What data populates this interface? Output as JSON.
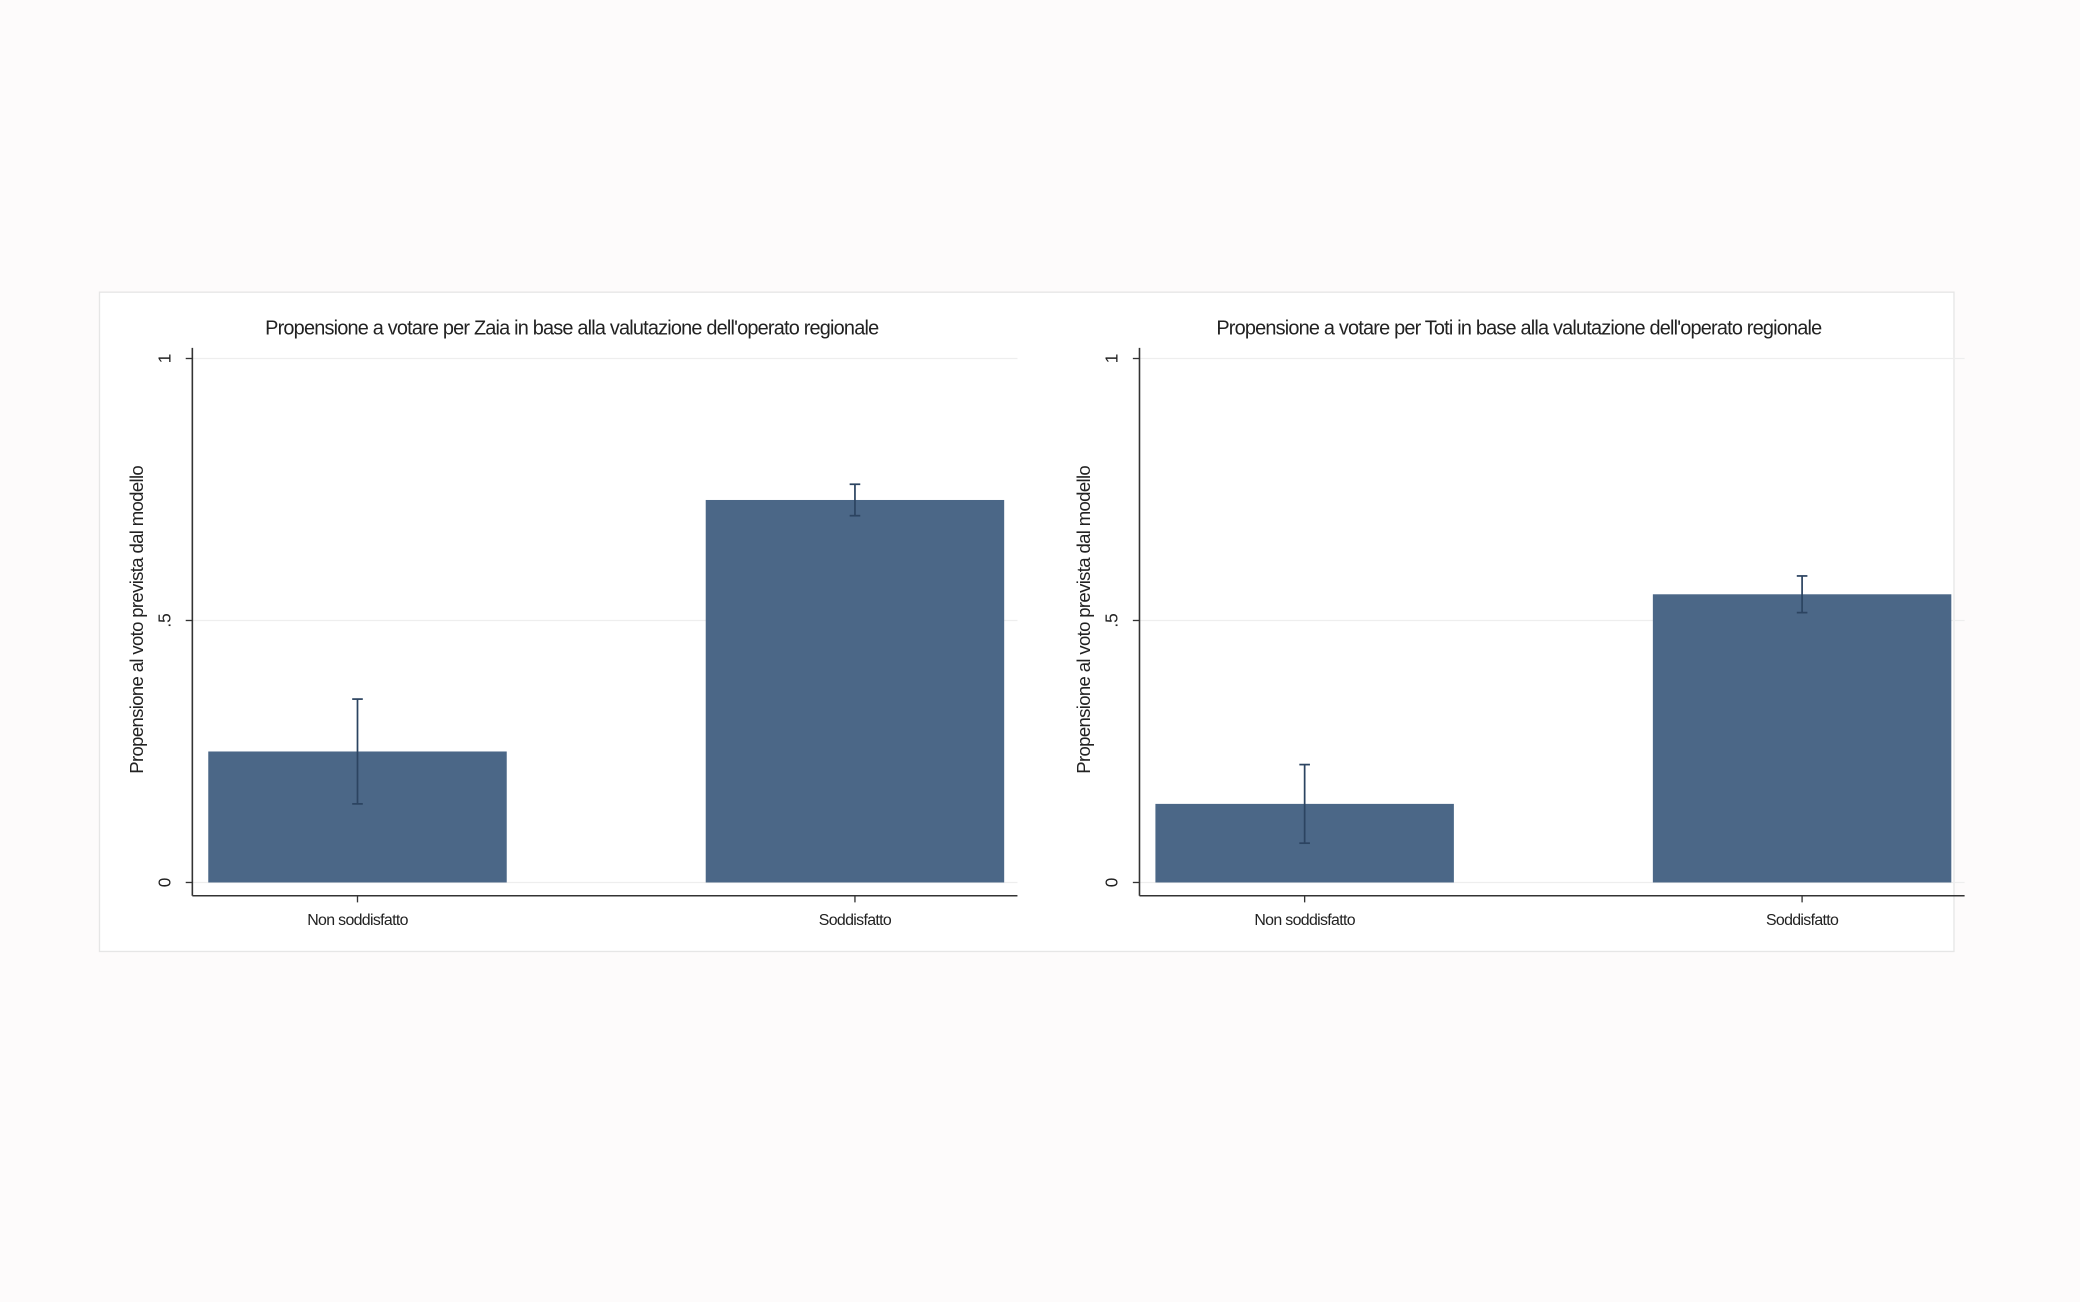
{
  "chart_data": [
    {
      "type": "bar",
      "title": "Propensione a votare per Zaia in base alla valutazione dell'operato regionale",
      "ylabel": "Propensione al voto prevista dal modello",
      "categories": [
        "Non soddisfatto",
        "Soddisfatto"
      ],
      "values": [
        0.25,
        0.73
      ],
      "errors": [
        0.1,
        0.03
      ],
      "color": "#4b6787",
      "ylim": [
        0,
        1
      ],
      "yticks": [
        0,
        {
          "value": 0.5,
          "label": ".5"
        },
        1
      ],
      "grid": true
    },
    {
      "type": "bar",
      "title": "Propensione a votare per Toti in base alla valutazione dell'operato regionale",
      "ylabel": "Propensione al voto prevista dal modello",
      "categories": [
        "Non soddisfatto",
        "Soddisfatto"
      ],
      "values": [
        0.15,
        0.55
      ],
      "errors": [
        0.075,
        0.035
      ],
      "color": "#4b6787",
      "ylim": [
        0,
        1
      ],
      "yticks": [
        0,
        {
          "value": 0.5,
          "label": ".5"
        },
        1
      ],
      "grid": true
    }
  ]
}
